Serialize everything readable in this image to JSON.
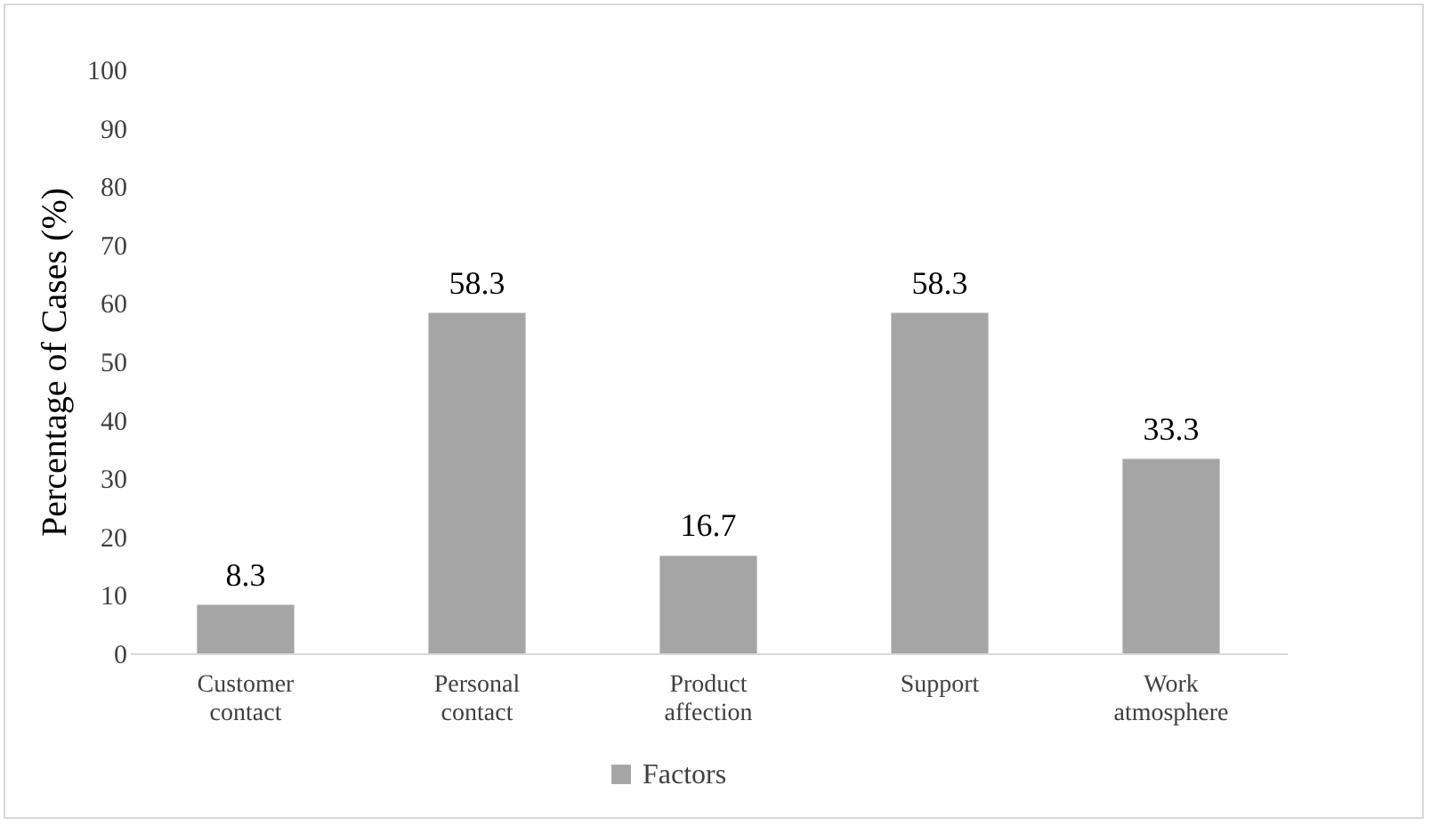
{
  "chart_data": {
    "type": "bar",
    "ylabel": "Percentage of Cases (%)",
    "categories": [
      "Customer contact",
      "Personal contact",
      "Product affection",
      "Support",
      "Work atmosphere"
    ],
    "series": [
      {
        "name": "Factors",
        "color": "#a5a5a5",
        "values": [
          8.3,
          58.3,
          16.7,
          58.3,
          33.3
        ]
      }
    ],
    "ylim": [
      0,
      100
    ],
    "yticks": [
      0,
      10,
      20,
      30,
      40,
      50,
      60,
      70,
      80,
      90,
      100
    ],
    "grid": false,
    "legend": "bottom",
    "data_labels": true
  }
}
